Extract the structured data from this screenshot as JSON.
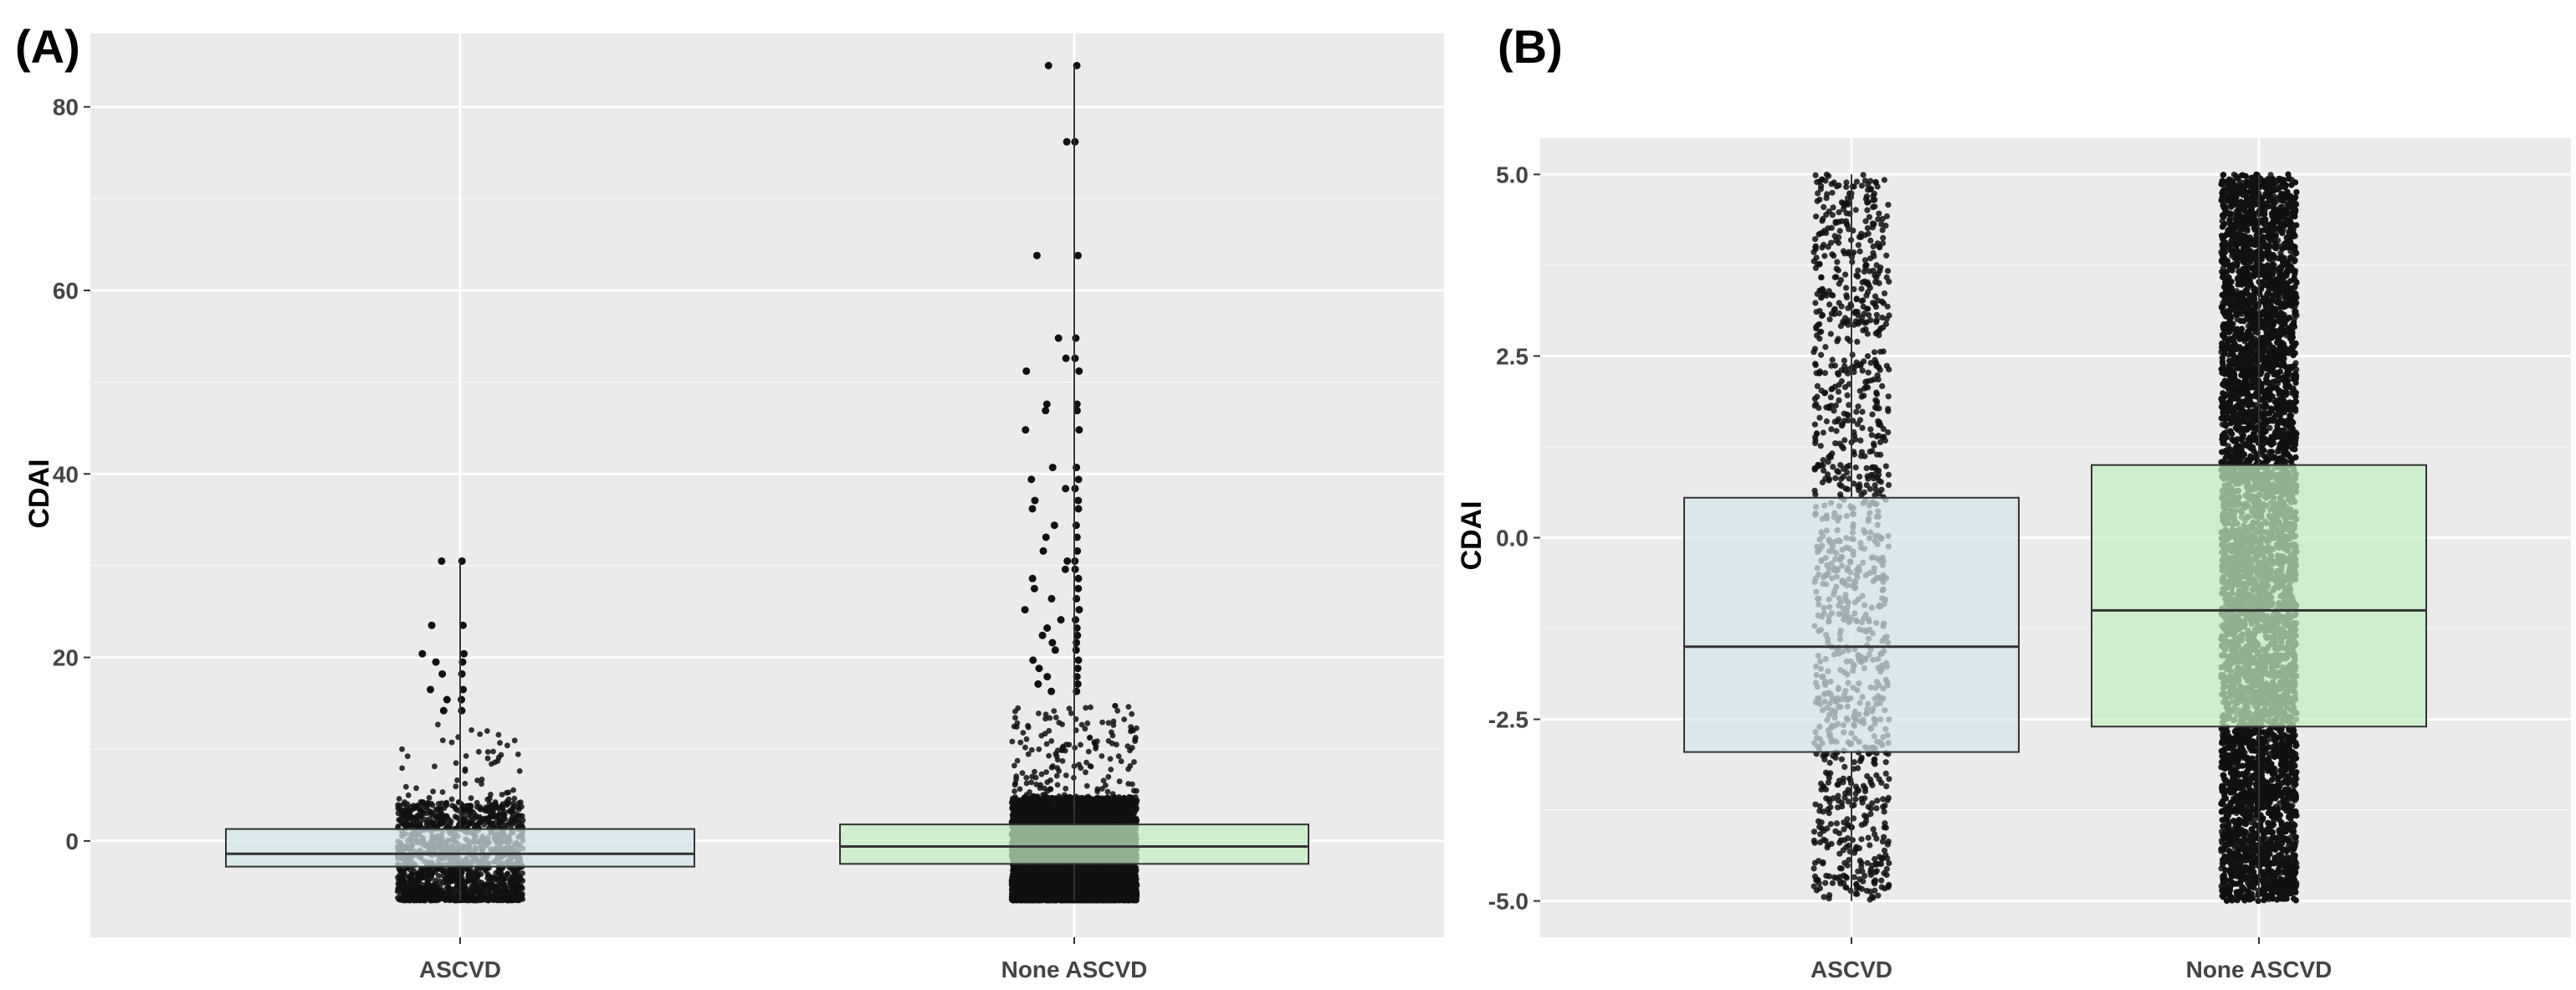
{
  "chart_data": [
    {
      "type": "box",
      "panel_label": "(A)",
      "ylabel": "CDAI",
      "xlabel": "",
      "ylim": [
        -10.5,
        88
      ],
      "yticks": [
        0,
        20,
        40,
        60,
        80
      ],
      "ytick_labels": [
        "0",
        "20",
        "40",
        "60",
        "80"
      ],
      "categories": [
        "ASCVD",
        "None ASCVD"
      ],
      "boxes": [
        {
          "category": "ASCVD",
          "q1": -2.8,
          "median": -1.4,
          "q3": 1.3,
          "whisker_low": -6.5,
          "whisker_high": 30.5,
          "fill": "#d3e6ec",
          "jitter_range": [
            -6.5,
            13
          ],
          "outliers": [
            30.5,
            23.5,
            20.4,
            19.5,
            18.2,
            16.5,
            15.4,
            14.2
          ]
        },
        {
          "category": "None ASCVD",
          "q1": -2.5,
          "median": -0.6,
          "q3": 1.8,
          "whisker_low": -6.5,
          "whisker_high": 84.5,
          "fill": "#c2eec2",
          "jitter_range": [
            -6.5,
            15
          ],
          "outliers": [
            84.5,
            76.2,
            63.8,
            54.8,
            52.6,
            51.2,
            47.6,
            46.9,
            44.8,
            40.7,
            39.4,
            38.4,
            37.1,
            36.2,
            34.4,
            33.1,
            31.6,
            30.5,
            29.6,
            28.6,
            27.5,
            26.4,
            25.2,
            24.1,
            23.2,
            22.4,
            21.6,
            20.8,
            19.7,
            18.8,
            17.9,
            17.1,
            16.3
          ]
        }
      ]
    },
    {
      "type": "box",
      "panel_label": "(B)",
      "ylabel": "CDAI",
      "xlabel": "",
      "ylim": [
        -5.5,
        5.5
      ],
      "yticks": [
        -5,
        -2.5,
        0,
        2.5,
        5
      ],
      "ytick_labels": [
        "-5.0",
        "-2.5",
        "0.0",
        "2.5",
        "5.0"
      ],
      "categories": [
        "ASCVD",
        "None ASCVD"
      ],
      "boxes": [
        {
          "category": "ASCVD",
          "q1": -2.95,
          "median": -1.5,
          "q3": 0.55,
          "whisker_low": -5.0,
          "whisker_high": 5.0,
          "fill": "#d3e6ec",
          "jitter_range": [
            -5.0,
            5.0
          ],
          "outliers": []
        },
        {
          "category": "None ASCVD",
          "q1": -2.6,
          "median": -1.0,
          "q3": 1.0,
          "whisker_low": -5.0,
          "whisker_high": 5.0,
          "fill": "#c2eec2",
          "jitter_range": [
            -5.0,
            5.0
          ],
          "outliers": []
        }
      ]
    }
  ]
}
